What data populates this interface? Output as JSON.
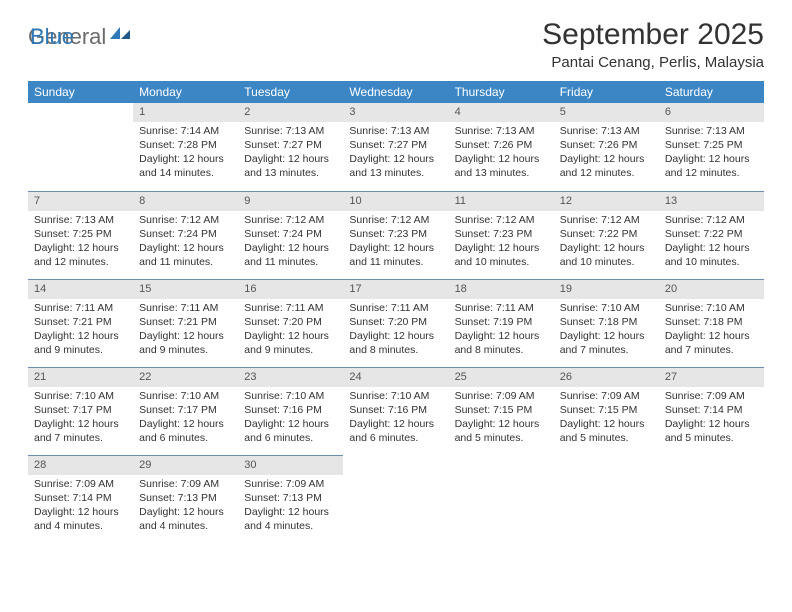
{
  "logo": {
    "text1": "General",
    "text2": "Blue"
  },
  "title": "September 2025",
  "location": "Pantai Cenang, Perlis, Malaysia",
  "colors": {
    "header_bg": "#3d86c6",
    "header_fg": "#ffffff",
    "daynum_bg": "#e6e6e6",
    "daynum_fg": "#555555",
    "rule": "#6a8fb0",
    "logo_gray": "#6b6b6b",
    "logo_blue": "#2f79b9"
  },
  "day_headers": [
    "Sunday",
    "Monday",
    "Tuesday",
    "Wednesday",
    "Thursday",
    "Friday",
    "Saturday"
  ],
  "weeks": [
    [
      {
        "empty": true
      },
      {
        "n": "1",
        "sr": "7:14 AM",
        "ss": "7:28 PM",
        "dl": "12 hours and 14 minutes."
      },
      {
        "n": "2",
        "sr": "7:13 AM",
        "ss": "7:27 PM",
        "dl": "12 hours and 13 minutes."
      },
      {
        "n": "3",
        "sr": "7:13 AM",
        "ss": "7:27 PM",
        "dl": "12 hours and 13 minutes."
      },
      {
        "n": "4",
        "sr": "7:13 AM",
        "ss": "7:26 PM",
        "dl": "12 hours and 13 minutes."
      },
      {
        "n": "5",
        "sr": "7:13 AM",
        "ss": "7:26 PM",
        "dl": "12 hours and 12 minutes."
      },
      {
        "n": "6",
        "sr": "7:13 AM",
        "ss": "7:25 PM",
        "dl": "12 hours and 12 minutes."
      }
    ],
    [
      {
        "n": "7",
        "sr": "7:13 AM",
        "ss": "7:25 PM",
        "dl": "12 hours and 12 minutes."
      },
      {
        "n": "8",
        "sr": "7:12 AM",
        "ss": "7:24 PM",
        "dl": "12 hours and 11 minutes."
      },
      {
        "n": "9",
        "sr": "7:12 AM",
        "ss": "7:24 PM",
        "dl": "12 hours and 11 minutes."
      },
      {
        "n": "10",
        "sr": "7:12 AM",
        "ss": "7:23 PM",
        "dl": "12 hours and 11 minutes."
      },
      {
        "n": "11",
        "sr": "7:12 AM",
        "ss": "7:23 PM",
        "dl": "12 hours and 10 minutes."
      },
      {
        "n": "12",
        "sr": "7:12 AM",
        "ss": "7:22 PM",
        "dl": "12 hours and 10 minutes."
      },
      {
        "n": "13",
        "sr": "7:12 AM",
        "ss": "7:22 PM",
        "dl": "12 hours and 10 minutes."
      }
    ],
    [
      {
        "n": "14",
        "sr": "7:11 AM",
        "ss": "7:21 PM",
        "dl": "12 hours and 9 minutes."
      },
      {
        "n": "15",
        "sr": "7:11 AM",
        "ss": "7:21 PM",
        "dl": "12 hours and 9 minutes."
      },
      {
        "n": "16",
        "sr": "7:11 AM",
        "ss": "7:20 PM",
        "dl": "12 hours and 9 minutes."
      },
      {
        "n": "17",
        "sr": "7:11 AM",
        "ss": "7:20 PM",
        "dl": "12 hours and 8 minutes."
      },
      {
        "n": "18",
        "sr": "7:11 AM",
        "ss": "7:19 PM",
        "dl": "12 hours and 8 minutes."
      },
      {
        "n": "19",
        "sr": "7:10 AM",
        "ss": "7:18 PM",
        "dl": "12 hours and 7 minutes."
      },
      {
        "n": "20",
        "sr": "7:10 AM",
        "ss": "7:18 PM",
        "dl": "12 hours and 7 minutes."
      }
    ],
    [
      {
        "n": "21",
        "sr": "7:10 AM",
        "ss": "7:17 PM",
        "dl": "12 hours and 7 minutes."
      },
      {
        "n": "22",
        "sr": "7:10 AM",
        "ss": "7:17 PM",
        "dl": "12 hours and 6 minutes."
      },
      {
        "n": "23",
        "sr": "7:10 AM",
        "ss": "7:16 PM",
        "dl": "12 hours and 6 minutes."
      },
      {
        "n": "24",
        "sr": "7:10 AM",
        "ss": "7:16 PM",
        "dl": "12 hours and 6 minutes."
      },
      {
        "n": "25",
        "sr": "7:09 AM",
        "ss": "7:15 PM",
        "dl": "12 hours and 5 minutes."
      },
      {
        "n": "26",
        "sr": "7:09 AM",
        "ss": "7:15 PM",
        "dl": "12 hours and 5 minutes."
      },
      {
        "n": "27",
        "sr": "7:09 AM",
        "ss": "7:14 PM",
        "dl": "12 hours and 5 minutes."
      }
    ],
    [
      {
        "n": "28",
        "sr": "7:09 AM",
        "ss": "7:14 PM",
        "dl": "12 hours and 4 minutes."
      },
      {
        "n": "29",
        "sr": "7:09 AM",
        "ss": "7:13 PM",
        "dl": "12 hours and 4 minutes."
      },
      {
        "n": "30",
        "sr": "7:09 AM",
        "ss": "7:13 PM",
        "dl": "12 hours and 4 minutes."
      },
      {
        "empty": true
      },
      {
        "empty": true
      },
      {
        "empty": true
      },
      {
        "empty": true
      }
    ]
  ],
  "labels": {
    "sunrise": "Sunrise:",
    "sunset": "Sunset:",
    "daylight": "Daylight:"
  }
}
